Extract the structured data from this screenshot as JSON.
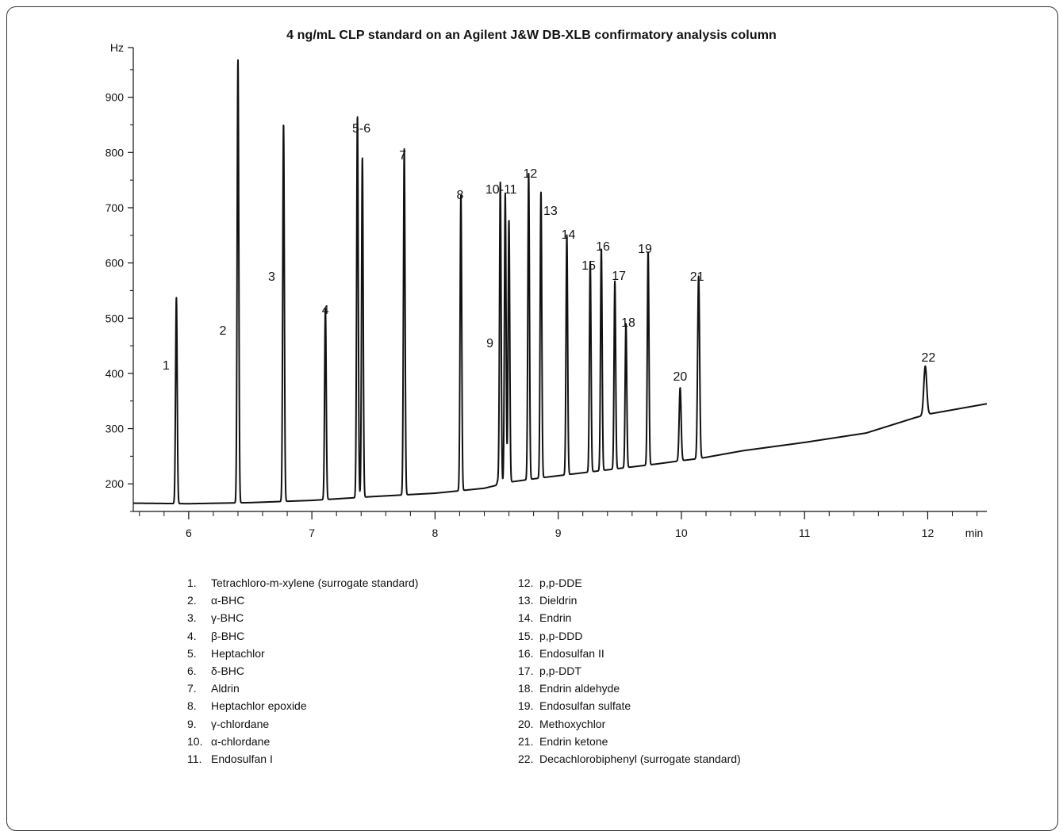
{
  "chart_data": {
    "type": "line",
    "title": "4 ng/mL CLP standard on an Agilent J&W DB-XLB confirmatory analysis column",
    "xlabel": "min",
    "ylabel": "Hz",
    "xlim": [
      5.55,
      12.48
    ],
    "ylim": [
      150,
      990
    ],
    "x_ticks": [
      6,
      7,
      8,
      9,
      10,
      11,
      12
    ],
    "y_ticks": [
      200,
      300,
      400,
      500,
      600,
      700,
      800,
      900
    ],
    "baseline": [
      {
        "x": 5.55,
        "y": 165
      },
      {
        "x": 6.0,
        "y": 164
      },
      {
        "x": 6.5,
        "y": 166
      },
      {
        "x": 7.0,
        "y": 170
      },
      {
        "x": 7.5,
        "y": 177
      },
      {
        "x": 8.0,
        "y": 183
      },
      {
        "x": 8.4,
        "y": 192
      },
      {
        "x": 8.6,
        "y": 203
      },
      {
        "x": 8.9,
        "y": 212
      },
      {
        "x": 9.2,
        "y": 220
      },
      {
        "x": 9.5,
        "y": 228
      },
      {
        "x": 9.8,
        "y": 236
      },
      {
        "x": 10.0,
        "y": 242
      },
      {
        "x": 10.15,
        "y": 246
      },
      {
        "x": 10.5,
        "y": 260
      },
      {
        "x": 11.0,
        "y": 275
      },
      {
        "x": 11.5,
        "y": 292
      },
      {
        "x": 11.9,
        "y": 320
      },
      {
        "x": 12.0,
        "y": 326
      },
      {
        "x": 12.48,
        "y": 345
      }
    ],
    "peaks": [
      {
        "label": "1",
        "rt": 5.9,
        "height": 538
      },
      {
        "label": "2",
        "rt": 6.4,
        "height": 968
      },
      {
        "label": "3",
        "rt": 6.77,
        "height": 852
      },
      {
        "label": "4",
        "rt": 7.11,
        "height": 519
      },
      {
        "label": "5-6",
        "rt": 7.37,
        "height": 866
      },
      {
        "label": "",
        "rt": 7.41,
        "height": 791
      },
      {
        "label": "7",
        "rt": 7.75,
        "height": 807
      },
      {
        "label": "8",
        "rt": 8.21,
        "height": 722
      },
      {
        "label": "9",
        "rt": 8.51,
        "height": 205
      },
      {
        "label": "10-11",
        "rt": 8.53,
        "height": 746
      },
      {
        "label": "",
        "rt": 8.57,
        "height": 726
      },
      {
        "label": "",
        "rt": 8.6,
        "height": 678
      },
      {
        "label": "12",
        "rt": 8.76,
        "height": 763
      },
      {
        "label": "13",
        "rt": 8.86,
        "height": 729
      },
      {
        "label": "14",
        "rt": 9.07,
        "height": 651
      },
      {
        "label": "15",
        "rt": 9.26,
        "height": 602
      },
      {
        "label": "16",
        "rt": 9.35,
        "height": 626
      },
      {
        "label": "17",
        "rt": 9.46,
        "height": 567
      },
      {
        "label": "18",
        "rt": 9.55,
        "height": 491
      },
      {
        "label": "19",
        "rt": 9.73,
        "height": 621
      },
      {
        "label": "20",
        "rt": 9.99,
        "height": 374
      },
      {
        "label": "21",
        "rt": 10.14,
        "height": 576
      },
      {
        "label": "22",
        "rt": 11.98,
        "height": 413
      }
    ]
  },
  "legend": {
    "left": [
      {
        "num": "1.",
        "name": "Tetrachloro-m-xylene (surrogate standard)"
      },
      {
        "num": "2.",
        "name": "α-BHC"
      },
      {
        "num": "3.",
        "name": "γ-BHC"
      },
      {
        "num": "4.",
        "name": "β-BHC"
      },
      {
        "num": "5.",
        "name": "Heptachlor"
      },
      {
        "num": "6.",
        "name": "δ-BHC"
      },
      {
        "num": "7.",
        "name": "Aldrin"
      },
      {
        "num": "8.",
        "name": "Heptachlor epoxide"
      },
      {
        "num": "9.",
        "name": "γ-chlordane"
      },
      {
        "num": "10.",
        "name": "α-chlordane"
      },
      {
        "num": "11.",
        "name": "Endosulfan I"
      }
    ],
    "right": [
      {
        "num": "12.",
        "name": "p,p-DDE"
      },
      {
        "num": "13.",
        "name": "Dieldrin"
      },
      {
        "num": "14.",
        "name": "Endrin"
      },
      {
        "num": "15.",
        "name": "p,p-DDD"
      },
      {
        "num": "16.",
        "name": "Endosulfan II"
      },
      {
        "num": "17.",
        "name": "p,p-DDT"
      },
      {
        "num": "18.",
        "name": "Endrin aldehyde"
      },
      {
        "num": "19.",
        "name": "Endosulfan sulfate"
      },
      {
        "num": "20.",
        "name": "Methoxychlor"
      },
      {
        "num": "21.",
        "name": "Endrin ketone"
      },
      {
        "num": "22.",
        "name": "Decachlorobiphenyl (surrogate standard)"
      }
    ]
  }
}
